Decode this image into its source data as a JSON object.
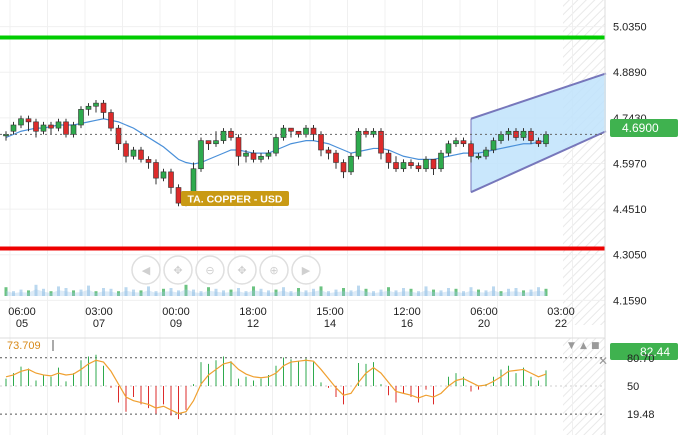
{
  "instrument_label": "TA. COPPER - USD",
  "colors": {
    "up": "#2eaa4d",
    "down": "#dd2b2b",
    "ma": "#4a90d9",
    "resistance": "#00cc00",
    "support": "#ee0000",
    "channel_fill": "#bfe3fb",
    "channel_line": "#7777bb",
    "price_badge": "#3fb24f",
    "label_badge": "#c99a14",
    "rsi_line": "#f0a030",
    "volume": "#9ec7e8"
  },
  "price_axis": {
    "ticks": [
      "5.0350",
      "4.8890",
      "4.7430",
      "4.5970",
      "4.4510",
      "4.3050",
      "4.1590"
    ],
    "min": 4.08,
    "max": 5.12,
    "current_price": "4.6900",
    "current_price_value": 4.69,
    "resistance": 5.0,
    "support": 4.325
  },
  "time_axis": [
    {
      "time": "06:00",
      "date": "05"
    },
    {
      "time": "03:00",
      "date": "07"
    },
    {
      "time": "00:00",
      "date": "09"
    },
    {
      "time": "18:00",
      "date": "12"
    },
    {
      "time": "15:00",
      "date": "14"
    },
    {
      "time": "12:00",
      "date": "16"
    },
    {
      "time": "06:00",
      "date": "20"
    },
    {
      "time": "03:00",
      "date": "22"
    }
  ],
  "indicator": {
    "value_label": "73.709",
    "current_label": "82.44",
    "current_value": 82.44,
    "ticks": [
      "80.70",
      "50",
      "19.48"
    ],
    "min": 0,
    "max": 100
  },
  "chart_data": {
    "type": "candlestick",
    "title": "TA. COPPER - USD",
    "ylim": [
      4.08,
      5.12
    ],
    "candles": [
      [
        4.69,
        4.69,
        4.67,
        4.7
      ],
      [
        4.7,
        4.72,
        4.69,
        4.73
      ],
      [
        4.72,
        4.74,
        4.71,
        4.75
      ],
      [
        4.74,
        4.73,
        4.7,
        4.75
      ],
      [
        4.73,
        4.7,
        4.68,
        4.74
      ],
      [
        4.7,
        4.72,
        4.69,
        4.73
      ],
      [
        4.72,
        4.71,
        4.69,
        4.73
      ],
      [
        4.71,
        4.73,
        4.7,
        4.74
      ],
      [
        4.73,
        4.69,
        4.68,
        4.74
      ],
      [
        4.69,
        4.72,
        4.68,
        4.73
      ],
      [
        4.72,
        4.77,
        4.71,
        4.78
      ],
      [
        4.77,
        4.78,
        4.75,
        4.79
      ],
      [
        4.78,
        4.79,
        4.76,
        4.8
      ],
      [
        4.79,
        4.76,
        4.74,
        4.8
      ],
      [
        4.76,
        4.71,
        4.7,
        4.77
      ],
      [
        4.71,
        4.66,
        4.64,
        4.72
      ],
      [
        4.66,
        4.62,
        4.6,
        4.67
      ],
      [
        4.62,
        4.64,
        4.61,
        4.65
      ],
      [
        4.64,
        4.61,
        4.6,
        4.65
      ],
      [
        4.61,
        4.6,
        4.58,
        4.62
      ],
      [
        4.6,
        4.55,
        4.53,
        4.61
      ],
      [
        4.55,
        4.57,
        4.54,
        4.58
      ],
      [
        4.57,
        4.52,
        4.5,
        4.58
      ],
      [
        4.52,
        4.47,
        4.46,
        4.53
      ],
      [
        4.47,
        4.49,
        4.46,
        4.5
      ],
      [
        4.49,
        4.58,
        4.48,
        4.6
      ],
      [
        4.58,
        4.67,
        4.57,
        4.68
      ],
      [
        4.67,
        4.66,
        4.64,
        4.67
      ],
      [
        4.66,
        4.67,
        4.65,
        4.7
      ],
      [
        4.67,
        4.7,
        4.66,
        4.71
      ],
      [
        4.7,
        4.68,
        4.67,
        4.71
      ],
      [
        4.68,
        4.62,
        4.59,
        4.69
      ],
      [
        4.62,
        4.63,
        4.6,
        4.64
      ],
      [
        4.63,
        4.61,
        4.6,
        4.64
      ],
      [
        4.61,
        4.62,
        4.6,
        4.63
      ],
      [
        4.62,
        4.63,
        4.61,
        4.64
      ],
      [
        4.63,
        4.68,
        4.62,
        4.69
      ],
      [
        4.68,
        4.71,
        4.67,
        4.72
      ],
      [
        4.71,
        4.7,
        4.68,
        4.71
      ],
      [
        4.7,
        4.69,
        4.68,
        4.7
      ],
      [
        4.69,
        4.71,
        4.68,
        4.72
      ],
      [
        4.71,
        4.69,
        4.67,
        4.72
      ],
      [
        4.69,
        4.64,
        4.62,
        4.7
      ],
      [
        4.64,
        4.63,
        4.61,
        4.65
      ],
      [
        4.63,
        4.6,
        4.58,
        4.64
      ],
      [
        4.6,
        4.57,
        4.55,
        4.61
      ],
      [
        4.57,
        4.62,
        4.56,
        4.63
      ],
      [
        4.62,
        4.7,
        4.61,
        4.71
      ],
      [
        4.7,
        4.69,
        4.68,
        4.71
      ],
      [
        4.69,
        4.7,
        4.68,
        4.71
      ],
      [
        4.7,
        4.63,
        4.61,
        4.71
      ],
      [
        4.63,
        4.6,
        4.58,
        4.64
      ],
      [
        4.6,
        4.58,
        4.57,
        4.62
      ],
      [
        4.58,
        4.6,
        4.57,
        4.61
      ],
      [
        4.6,
        4.59,
        4.58,
        4.61
      ],
      [
        4.59,
        4.58,
        4.57,
        4.6
      ],
      [
        4.58,
        4.61,
        4.57,
        4.62
      ],
      [
        4.61,
        4.58,
        4.56,
        4.61
      ],
      [
        4.58,
        4.63,
        4.57,
        4.64
      ],
      [
        4.63,
        4.66,
        4.62,
        4.67
      ],
      [
        4.66,
        4.67,
        4.65,
        4.68
      ],
      [
        4.67,
        4.66,
        4.65,
        4.68
      ],
      [
        4.66,
        4.62,
        4.6,
        4.67
      ],
      [
        4.62,
        4.62,
        4.61,
        4.63
      ],
      [
        4.62,
        4.64,
        4.61,
        4.65
      ],
      [
        4.64,
        4.67,
        4.63,
        4.68
      ],
      [
        4.67,
        4.69,
        4.66,
        4.7
      ],
      [
        4.69,
        4.7,
        4.67,
        4.71
      ],
      [
        4.7,
        4.68,
        4.67,
        4.71
      ],
      [
        4.68,
        4.7,
        4.67,
        4.71
      ],
      [
        4.7,
        4.67,
        4.66,
        4.71
      ],
      [
        4.67,
        4.66,
        4.65,
        4.68
      ],
      [
        4.66,
        4.69,
        4.65,
        4.7
      ]
    ],
    "ma": [
      4.68,
      4.69,
      4.7,
      4.705,
      4.71,
      4.71,
      4.715,
      4.72,
      4.72,
      4.72,
      4.725,
      4.73,
      4.735,
      4.74,
      4.735,
      4.73,
      4.72,
      4.71,
      4.695,
      4.68,
      4.665,
      4.65,
      4.63,
      4.61,
      4.6,
      4.595,
      4.6,
      4.61,
      4.62,
      4.63,
      4.64,
      4.64,
      4.635,
      4.63,
      4.63,
      4.63,
      4.64,
      4.65,
      4.66,
      4.665,
      4.67,
      4.67,
      4.665,
      4.66,
      4.65,
      4.64,
      4.63,
      4.635,
      4.64,
      4.645,
      4.645,
      4.64,
      4.63,
      4.62,
      4.615,
      4.61,
      4.61,
      4.61,
      4.615,
      4.62,
      4.625,
      4.63,
      4.63,
      4.63,
      4.635,
      4.64,
      4.645,
      4.65,
      4.655,
      4.66,
      4.66,
      4.665,
      4.67
    ],
    "volume": [
      0.55,
      0.3,
      0.4,
      0.35,
      0.7,
      0.45,
      0.3,
      0.6,
      0.5,
      0.35,
      0.4,
      0.65,
      0.3,
      0.5,
      0.45,
      0.3,
      0.55,
      0.4,
      0.35,
      0.6,
      0.3,
      0.45,
      0.5,
      0.35,
      0.7,
      0.4,
      0.3,
      0.55,
      0.45,
      0.35,
      0.4,
      0.5,
      0.3,
      0.6,
      0.45,
      0.35,
      0.4,
      0.55,
      0.3,
      0.5,
      0.35,
      0.45,
      0.6,
      0.3,
      0.4,
      0.5,
      0.35,
      0.65,
      0.45,
      0.3,
      0.4,
      0.55,
      0.35,
      0.5,
      0.45,
      0.3,
      0.6,
      0.4,
      0.35,
      0.5,
      0.45,
      0.3,
      0.55,
      0.4,
      0.35,
      0.6,
      0.3,
      0.45,
      0.5,
      0.35,
      0.4,
      0.55,
      0.45
    ],
    "channel": {
      "from_index": 62,
      "to_index": 80,
      "upper": [
        4.74,
        4.885
      ],
      "lower": [
        4.505,
        4.7
      ]
    },
    "rsi_bars": [
      58,
      64,
      71,
      69,
      56,
      62,
      60,
      70,
      55,
      64,
      78,
      82,
      84,
      72,
      48,
      32,
      22,
      38,
      30,
      26,
      20,
      30,
      18,
      14,
      24,
      52,
      76,
      74,
      78,
      82,
      77,
      58,
      60,
      56,
      58,
      62,
      72,
      81,
      79,
      77,
      80,
      76,
      54,
      48,
      38,
      30,
      50,
      75,
      74,
      76,
      52,
      40,
      32,
      42,
      38,
      32,
      46,
      30,
      50,
      60,
      64,
      60,
      44,
      46,
      52,
      60,
      68,
      72,
      64,
      70,
      60,
      56,
      67
    ],
    "rsi_line": [
      60,
      62,
      66,
      68,
      64,
      62,
      61,
      64,
      62,
      63,
      68,
      74,
      78,
      76,
      66,
      52,
      38,
      34,
      32,
      30,
      26,
      28,
      24,
      20,
      22,
      34,
      52,
      62,
      68,
      74,
      76,
      68,
      63,
      60,
      59,
      60,
      64,
      72,
      76,
      77,
      78,
      77,
      68,
      58,
      48,
      40,
      42,
      54,
      64,
      70,
      64,
      54,
      44,
      42,
      40,
      37,
      40,
      38,
      42,
      50,
      56,
      58,
      54,
      50,
      51,
      55,
      60,
      66,
      67,
      68,
      64,
      60,
      63
    ]
  }
}
